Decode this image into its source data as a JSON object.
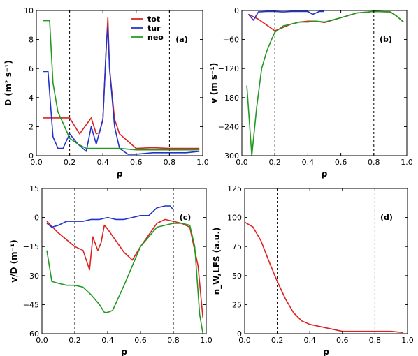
{
  "chart_data": [
    {
      "type": "line",
      "panel_label": "(a)",
      "xlabel": "ρ",
      "ylabel": "D (m² s⁻¹)",
      "xlim": [
        0.0,
        1.0
      ],
      "ylim": [
        0,
        10
      ],
      "xticks": [
        "0.0",
        "0.2",
        "0.4",
        "0.6",
        "0.8",
        "1.0"
      ],
      "yticks": [
        "0",
        "2",
        "4",
        "6",
        "8",
        "10"
      ],
      "vlines": [
        0.2,
        0.8
      ],
      "legend": "top-right",
      "series": [
        {
          "name": "tot",
          "color": "#dd2222",
          "x": [
            0.04,
            0.1,
            0.2,
            0.26,
            0.33,
            0.36,
            0.38,
            0.4,
            0.42,
            0.43,
            0.44,
            0.47,
            0.5,
            0.53,
            0.6,
            0.7,
            0.8,
            0.9,
            0.98
          ],
          "y": [
            2.6,
            2.6,
            2.6,
            1.5,
            2.6,
            1.5,
            1.6,
            2.5,
            7.5,
            9.5,
            6.0,
            2.5,
            1.5,
            1.2,
            0.5,
            0.55,
            0.5,
            0.5,
            0.5
          ]
        },
        {
          "name": "tur",
          "color": "#2233cc",
          "x": [
            0.04,
            0.07,
            0.1,
            0.13,
            0.16,
            0.2,
            0.25,
            0.3,
            0.33,
            0.36,
            0.4,
            0.42,
            0.43,
            0.44,
            0.47,
            0.5,
            0.55,
            0.6,
            0.7,
            0.8,
            0.9,
            0.98
          ],
          "y": [
            5.8,
            5.8,
            1.3,
            0.5,
            0.5,
            1.5,
            0.8,
            0.3,
            2.0,
            0.8,
            2.5,
            7.5,
            8.9,
            6.0,
            2.0,
            0.5,
            0.1,
            0.1,
            0.2,
            0.2,
            0.2,
            0.3
          ]
        },
        {
          "name": "neo",
          "color": "#229922",
          "x": [
            0.04,
            0.08,
            0.1,
            0.13,
            0.17,
            0.2,
            0.25,
            0.3,
            0.35,
            0.4,
            0.5,
            0.6,
            0.7,
            0.8,
            0.9,
            0.98
          ],
          "y": [
            9.3,
            9.3,
            5.0,
            3.0,
            2.0,
            1.2,
            0.8,
            0.5,
            0.5,
            0.5,
            0.5,
            0.4,
            0.4,
            0.4,
            0.4,
            0.4
          ]
        }
      ]
    },
    {
      "type": "line",
      "panel_label": "(b)",
      "xlabel": "ρ",
      "ylabel": "v (m s⁻¹)",
      "xlim": [
        0.0,
        1.0
      ],
      "ylim": [
        -300,
        0
      ],
      "xticks": [
        "0.0",
        "0.2",
        "0.4",
        "0.6",
        "0.8",
        "1.0"
      ],
      "yticks": [
        "0",
        "−60",
        "−120",
        "−180",
        "−240",
        "−300"
      ],
      "vlines": [
        0.2,
        0.8
      ],
      "series": [
        {
          "name": "tot",
          "color": "#dd2222",
          "x": [
            0.04,
            0.1,
            0.15,
            0.2,
            0.25,
            0.3,
            0.35,
            0.4,
            0.45,
            0.5,
            0.6,
            0.7,
            0.8,
            0.9,
            0.94,
            0.98
          ],
          "y": [
            -8,
            -18,
            -30,
            -42,
            -35,
            -28,
            -24,
            -22,
            -22,
            -25,
            -15,
            -5,
            -2,
            -3,
            -12,
            -24
          ]
        },
        {
          "name": "tur",
          "color": "#2233cc",
          "x": [
            0.04,
            0.07,
            0.1,
            0.15,
            0.2,
            0.25,
            0.3,
            0.35,
            0.4,
            0.43,
            0.47,
            0.5
          ],
          "y": [
            -8,
            -20,
            -3,
            -2,
            -2,
            -3,
            -2,
            -2,
            -2,
            -8,
            -2,
            -2
          ]
        },
        {
          "name": "neo",
          "color": "#229922",
          "x": [
            0.03,
            0.06,
            0.09,
            0.12,
            0.15,
            0.18,
            0.2,
            0.25,
            0.3,
            0.35,
            0.4,
            0.45,
            0.5,
            0.6,
            0.7,
            0.8,
            0.9,
            0.94,
            0.98
          ],
          "y": [
            -155,
            -300,
            -200,
            -120,
            -85,
            -60,
            -45,
            -32,
            -28,
            -24,
            -24,
            -22,
            -24,
            -15,
            -5,
            -2,
            -3,
            -12,
            -24
          ]
        }
      ]
    },
    {
      "type": "line",
      "panel_label": "(c)",
      "xlabel": "ρ",
      "ylabel": "v/D (m⁻¹)",
      "xlim": [
        0.0,
        1.0
      ],
      "ylim": [
        -60,
        15
      ],
      "xticks": [
        "0.0",
        "0.2",
        "0.4",
        "0.6",
        "0.8",
        "1.0"
      ],
      "yticks": [
        "15",
        "0",
        "−15",
        "−30",
        "−45",
        "−60"
      ],
      "vlines": [
        0.2,
        0.8
      ],
      "series": [
        {
          "name": "tot",
          "color": "#dd2222",
          "x": [
            0.03,
            0.1,
            0.2,
            0.25,
            0.29,
            0.31,
            0.34,
            0.36,
            0.38,
            0.4,
            0.45,
            0.5,
            0.55,
            0.6,
            0.7,
            0.75,
            0.8,
            0.85,
            0.9,
            0.95,
            0.98
          ],
          "y": [
            -2,
            -8,
            -15,
            -17,
            -27,
            -10,
            -17,
            -13,
            -4,
            -6,
            -12,
            -18,
            -22,
            -15,
            -3,
            -1,
            -2,
            -3,
            -5,
            -25,
            -52
          ]
        },
        {
          "name": "tur",
          "color": "#2233cc",
          "x": [
            0.03,
            0.06,
            0.1,
            0.15,
            0.2,
            0.25,
            0.3,
            0.35,
            0.4,
            0.45,
            0.5,
            0.55,
            0.6,
            0.65,
            0.7,
            0.75,
            0.78,
            0.8
          ],
          "y": [
            -3,
            -5,
            -4,
            -2,
            -2,
            -2,
            -1,
            -1,
            0,
            -1,
            -1,
            0,
            1,
            1,
            5,
            6,
            6,
            4
          ]
        },
        {
          "name": "neo",
          "color": "#229922",
          "x": [
            0.03,
            0.06,
            0.1,
            0.15,
            0.2,
            0.25,
            0.3,
            0.35,
            0.38,
            0.4,
            0.43,
            0.5,
            0.6,
            0.7,
            0.8,
            0.85,
            0.9,
            0.93,
            0.96,
            0.98
          ],
          "y": [
            -17,
            -33,
            -34,
            -35,
            -35,
            -36,
            -40,
            -45,
            -49,
            -49,
            -48,
            -35,
            -15,
            -5,
            -3,
            -3,
            -4,
            -15,
            -50,
            -60
          ]
        }
      ]
    },
    {
      "type": "line",
      "panel_label": "(d)",
      "xlabel": "ρ",
      "ylabel": "n_W,LFS (a.u.)",
      "xlim": [
        0.0,
        1.0
      ],
      "ylim": [
        0,
        125
      ],
      "xticks": [
        "0.0",
        "0.2",
        "0.4",
        "0.6",
        "0.8",
        "1.0"
      ],
      "yticks": [
        "0",
        "25",
        "50",
        "75",
        "100",
        "125"
      ],
      "vlines": [
        0.2,
        0.8
      ],
      "series": [
        {
          "name": "tot",
          "color": "#dd2222",
          "x": [
            0.0,
            0.05,
            0.1,
            0.15,
            0.2,
            0.25,
            0.3,
            0.35,
            0.4,
            0.5,
            0.6,
            0.7,
            0.8,
            0.9,
            0.97
          ],
          "y": [
            96,
            92,
            80,
            62,
            45,
            30,
            18,
            11,
            8,
            5,
            2,
            2,
            2,
            2,
            1
          ]
        }
      ]
    }
  ]
}
